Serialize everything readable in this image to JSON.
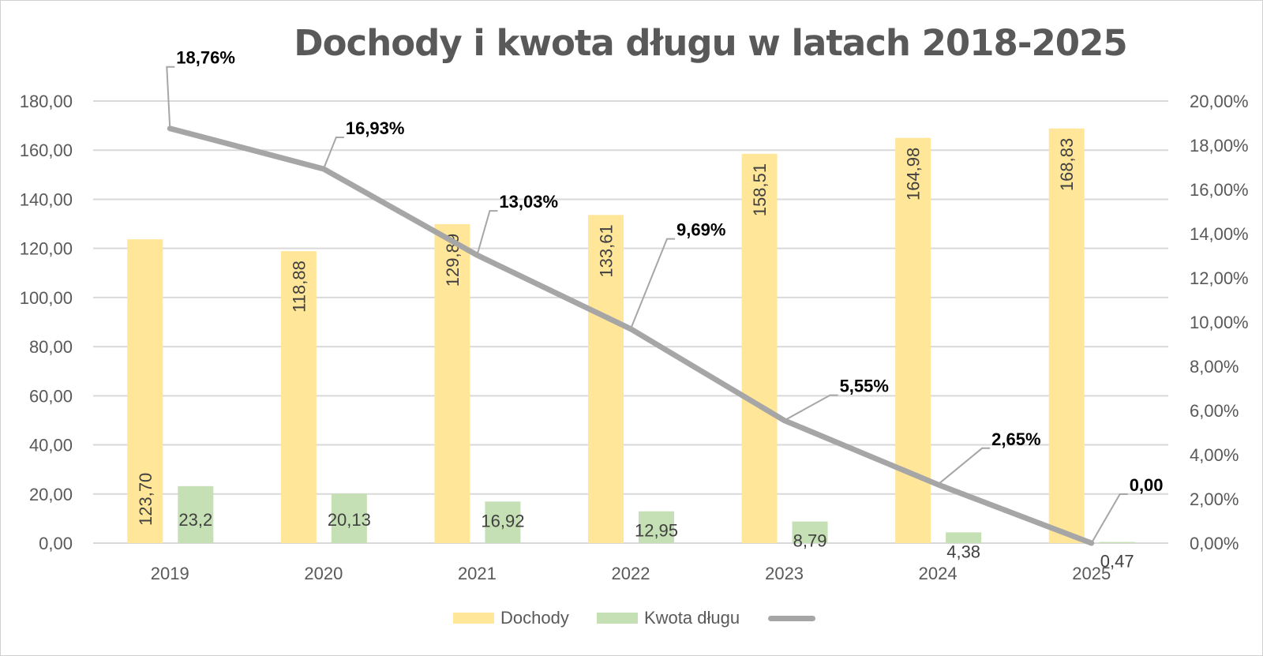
{
  "chart_data": {
    "type": "bar",
    "title": "Dochody i kwota długu w latach 2018-2025",
    "categories": [
      "2019",
      "2020",
      "2021",
      "2022",
      "2023",
      "2024",
      "2025"
    ],
    "series": [
      {
        "name": "Dochody",
        "kind": "bar",
        "axis": "left",
        "color": "#FFE699",
        "values": [
          123.7,
          118.88,
          129.89,
          133.61,
          158.51,
          164.98,
          168.83
        ],
        "labels": [
          "123,70",
          "118,88",
          "129,89",
          "133,61",
          "158,51",
          "164,98",
          "168,83"
        ]
      },
      {
        "name": "Kwota długu",
        "kind": "bar",
        "axis": "left",
        "color": "#C5E0B4",
        "values": [
          23.2,
          20.13,
          16.92,
          12.95,
          8.79,
          4.38,
          0.47
        ],
        "labels": [
          "23,2",
          "20,13",
          "16,92",
          "12,95",
          "8,79",
          "4,38",
          "0,47"
        ]
      },
      {
        "kind": "line",
        "axis": "right",
        "color": "#A6A6A6",
        "values": [
          18.76,
          16.93,
          13.03,
          9.69,
          5.55,
          2.65,
          0.0
        ],
        "labels": [
          "18,76%",
          "16,93%",
          "13,03%",
          "9,69%",
          "5,55%",
          "2,65%",
          "0,00"
        ]
      }
    ],
    "y_left": {
      "min": 0,
      "max": 180,
      "step": 20,
      "ticks": [
        "0,00",
        "20,00",
        "40,00",
        "60,00",
        "80,00",
        "100,00",
        "120,00",
        "140,00",
        "160,00",
        "180,00"
      ]
    },
    "y_right": {
      "min": 0,
      "max": 20,
      "step": 2,
      "ticks": [
        "0,00%",
        "2,00%",
        "4,00%",
        "6,00%",
        "8,00%",
        "10,00%",
        "12,00%",
        "14,00%",
        "16,00%",
        "18,00%",
        "20,00%"
      ]
    },
    "grid": true,
    "legend_position": "bottom",
    "colors": {
      "grid": "#D9D9D9",
      "axis_text": "#595959",
      "label_text": "#404040",
      "line_label_text": "#000000",
      "leader": "#A6A6A6"
    }
  }
}
